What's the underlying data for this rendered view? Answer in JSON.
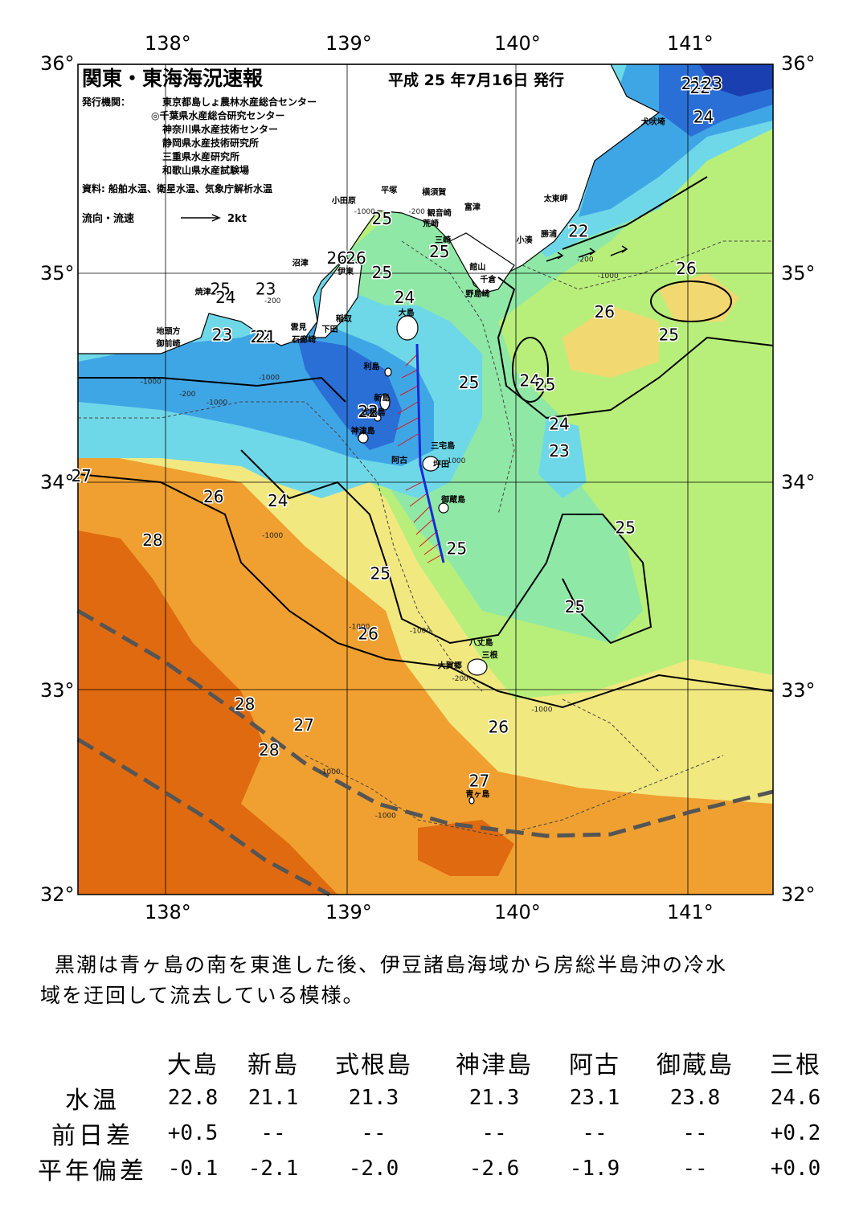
{
  "header": {
    "title": "関東・東海海況速報",
    "issue_date": "平成 25 年7月16日 発行",
    "publisher_label": "発行機関：",
    "publishers": [
      "東京都島しょ農林水産総合センター",
      "◎千葉県水産総合研究センター",
      "神奈川県水産技術センター",
      "静岡県水産技術研究所",
      "三重県水産研究所",
      "和歌山県水産試験場"
    ],
    "sources": "資料: 船舶水温、衛星水温、気象庁解析水温",
    "legend_label": "流向・流速",
    "legend_speed": "2kt"
  },
  "axes": {
    "lon_ticks": [
      "138°",
      "139°",
      "140°",
      "141°"
    ],
    "lat_ticks": [
      "36°",
      "35°",
      "34°",
      "33°",
      "32°"
    ],
    "lon_range": [
      137.5,
      141.5
    ],
    "lat_range": [
      32,
      36
    ]
  },
  "colors": {
    "land": "#ffffff",
    "temp_22": "#2a6fd6",
    "temp_23": "#3fa6e6",
    "temp_24": "#6fd8e8",
    "temp_25": "#8fe8a6",
    "temp_26": "#b8ef7a",
    "temp_27": "#f2e880",
    "temp_28": "#f0a030",
    "temp_29": "#e06a10",
    "kuroshio_line": "#555555",
    "track_line": "#1a2ad6",
    "current_vector": "#e0141e"
  },
  "temperature_labels": [
    {
      "text": "21",
      "lon": 141.03,
      "lat": 35.88
    },
    {
      "text": "22",
      "lon": 141.08,
      "lat": 35.86
    },
    {
      "text": "23",
      "lon": 141.15,
      "lat": 35.88
    },
    {
      "text": "24",
      "lon": 141.1,
      "lat": 35.72
    },
    {
      "text": "22",
      "lon": 140.38,
      "lat": 35.17
    },
    {
      "text": "25",
      "lon": 139.25,
      "lat": 35.23
    },
    {
      "text": "25",
      "lon": 139.58,
      "lat": 35.07
    },
    {
      "text": "26",
      "lon": 138.99,
      "lat": 35.04
    },
    {
      "text": "26",
      "lon": 139.1,
      "lat": 35.04
    },
    {
      "text": "25",
      "lon": 139.25,
      "lat": 34.97
    },
    {
      "text": "24",
      "lon": 139.38,
      "lat": 34.85
    },
    {
      "text": "25",
      "lon": 138.32,
      "lat": 34.89
    },
    {
      "text": "24",
      "lon": 138.35,
      "lat": 34.85
    },
    {
      "text": "23",
      "lon": 138.58,
      "lat": 34.89
    },
    {
      "text": "23",
      "lon": 138.33,
      "lat": 34.67
    },
    {
      "text": "22",
      "lon": 138.55,
      "lat": 34.66
    },
    {
      "text": "21",
      "lon": 138.58,
      "lat": 34.66
    },
    {
      "text": "26",
      "lon": 141.0,
      "lat": 34.99
    },
    {
      "text": "26",
      "lon": 140.53,
      "lat": 34.78
    },
    {
      "text": "25",
      "lon": 140.9,
      "lat": 34.67
    },
    {
      "text": "25",
      "lon": 139.75,
      "lat": 34.44
    },
    {
      "text": "24",
      "lon": 140.1,
      "lat": 34.45
    },
    {
      "text": "25",
      "lon": 140.19,
      "lat": 34.43
    },
    {
      "text": "22",
      "lon": 139.17,
      "lat": 34.3
    },
    {
      "text": "24",
      "lon": 140.27,
      "lat": 34.24
    },
    {
      "text": "23",
      "lon": 140.27,
      "lat": 34.11
    },
    {
      "text": "27",
      "lon": 137.52,
      "lat": 33.99
    },
    {
      "text": "26",
      "lon": 138.28,
      "lat": 33.89
    },
    {
      "text": "24",
      "lon": 138.65,
      "lat": 33.87
    },
    {
      "text": "25",
      "lon": 140.65,
      "lat": 33.74
    },
    {
      "text": "28",
      "lon": 137.93,
      "lat": 33.68
    },
    {
      "text": "25",
      "lon": 139.68,
      "lat": 33.64
    },
    {
      "text": "25",
      "lon": 139.24,
      "lat": 33.52
    },
    {
      "text": "25",
      "lon": 140.36,
      "lat": 33.36
    },
    {
      "text": "26",
      "lon": 139.17,
      "lat": 33.23
    },
    {
      "text": "28",
      "lon": 138.46,
      "lat": 32.89
    },
    {
      "text": "27",
      "lon": 138.8,
      "lat": 32.79
    },
    {
      "text": "26",
      "lon": 139.92,
      "lat": 32.78
    },
    {
      "text": "28",
      "lon": 138.6,
      "lat": 32.67
    },
    {
      "text": "27",
      "lon": 139.81,
      "lat": 32.52
    }
  ],
  "place_names": [
    {
      "text": "犬吠埼",
      "lon": 140.81,
      "lat": 35.71
    },
    {
      "text": "太東岬",
      "lon": 140.25,
      "lat": 35.34
    },
    {
      "text": "勝浦",
      "lon": 140.21,
      "lat": 35.17
    },
    {
      "text": "小湊",
      "lon": 140.07,
      "lat": 35.14
    },
    {
      "text": "富津",
      "lon": 139.77,
      "lat": 35.3
    },
    {
      "text": "横須賀",
      "lon": 139.55,
      "lat": 35.37
    },
    {
      "text": "平塚",
      "lon": 139.29,
      "lat": 35.38
    },
    {
      "text": "小田原",
      "lon": 139.03,
      "lat": 35.33
    },
    {
      "text": "観音崎",
      "lon": 139.58,
      "lat": 35.27
    },
    {
      "text": "荒崎",
      "lon": 139.53,
      "lat": 35.22
    },
    {
      "text": "三崎",
      "lon": 139.6,
      "lat": 35.14
    },
    {
      "text": "館山",
      "lon": 139.8,
      "lat": 35.01
    },
    {
      "text": "千倉",
      "lon": 139.86,
      "lat": 34.95
    },
    {
      "text": "野島崎",
      "lon": 139.8,
      "lat": 34.88
    },
    {
      "text": "沼津",
      "lon": 138.78,
      "lat": 35.03
    },
    {
      "text": "伊東",
      "lon": 139.04,
      "lat": 34.99
    },
    {
      "text": "大島",
      "lon": 139.39,
      "lat": 34.79
    },
    {
      "text": "焼津",
      "lon": 138.22,
      "lat": 34.89
    },
    {
      "text": "稲取",
      "lon": 139.03,
      "lat": 34.76
    },
    {
      "text": "下田",
      "lon": 138.95,
      "lat": 34.71
    },
    {
      "text": "雲見",
      "lon": 138.77,
      "lat": 34.72
    },
    {
      "text": "石廊崎",
      "lon": 138.8,
      "lat": 34.66
    },
    {
      "text": "地頭方",
      "lon": 138.02,
      "lat": 34.7
    },
    {
      "text": "御前崎",
      "lon": 138.02,
      "lat": 34.64
    },
    {
      "text": "利島",
      "lon": 139.19,
      "lat": 34.53
    },
    {
      "text": "新島",
      "lon": 139.25,
      "lat": 34.38
    },
    {
      "text": "式根島",
      "lon": 139.2,
      "lat": 34.31
    },
    {
      "text": "神津島",
      "lon": 139.14,
      "lat": 34.22
    },
    {
      "text": "三宅島",
      "lon": 139.6,
      "lat": 34.15
    },
    {
      "text": "阿古",
      "lon": 139.35,
      "lat": 34.08
    },
    {
      "text": "坪田",
      "lon": 139.59,
      "lat": 34.06
    },
    {
      "text": "御蔵島",
      "lon": 139.66,
      "lat": 33.89
    },
    {
      "text": "八丈島",
      "lon": 139.82,
      "lat": 33.2
    },
    {
      "text": "三根",
      "lon": 139.87,
      "lat": 33.14
    },
    {
      "text": "大賀郷",
      "lon": 139.64,
      "lat": 33.09
    },
    {
      "text": "青ヶ島",
      "lon": 139.8,
      "lat": 32.47
    }
  ],
  "depth_labels": [
    {
      "text": "-1000",
      "lon": 139.15,
      "lat": 35.28
    },
    {
      "text": "-200",
      "lon": 139.45,
      "lat": 35.28
    },
    {
      "text": "-200",
      "lon": 140.42,
      "lat": 35.05
    },
    {
      "text": "-1000",
      "lon": 140.55,
      "lat": 34.97
    },
    {
      "text": "-200",
      "lon": 138.62,
      "lat": 34.85
    },
    {
      "text": "-200",
      "lon": 138.13,
      "lat": 34.4
    },
    {
      "text": "-1000",
      "lon": 137.92,
      "lat": 34.46
    },
    {
      "text": "-1000",
      "lon": 138.3,
      "lat": 34.36
    },
    {
      "text": "-1000",
      "lon": 138.6,
      "lat": 34.48
    },
    {
      "text": "-1000",
      "lon": 139.67,
      "lat": 34.08
    },
    {
      "text": "-1000",
      "lon": 138.62,
      "lat": 33.72
    },
    {
      "text": "-1000",
      "lon": 139.12,
      "lat": 33.28
    },
    {
      "text": "-1000",
      "lon": 139.47,
      "lat": 33.26
    },
    {
      "text": "-200",
      "lon": 139.7,
      "lat": 33.03
    },
    {
      "text": "-1000",
      "lon": 140.17,
      "lat": 32.88
    },
    {
      "text": "-1000",
      "lon": 138.95,
      "lat": 32.58
    },
    {
      "text": "-1000",
      "lon": 139.27,
      "lat": 32.37
    }
  ],
  "summary": {
    "line1": "黒潮は青ヶ島の南を東進した後、伊豆諸島海域から房総半島沖の冷水",
    "line2": "域を迂回して流去している模様。"
  },
  "station_table": {
    "stations": [
      "大島",
      "新島",
      "式根島",
      "神津島",
      "阿古",
      "御蔵島",
      "三根"
    ],
    "rows": [
      {
        "label": "水温",
        "values": [
          "22.8",
          "21.1",
          "21.3",
          "21.3",
          "23.1",
          "23.8",
          "24.6"
        ]
      },
      {
        "label": "前日差",
        "values": [
          "+0.5",
          "--",
          "--",
          "--",
          "--",
          "--",
          "+0.2"
        ]
      },
      {
        "label": "平年偏差",
        "values": [
          "-0.1",
          "-2.1",
          "-2.0",
          "-2.6",
          "-1.9",
          "--",
          "+0.0"
        ]
      }
    ]
  }
}
